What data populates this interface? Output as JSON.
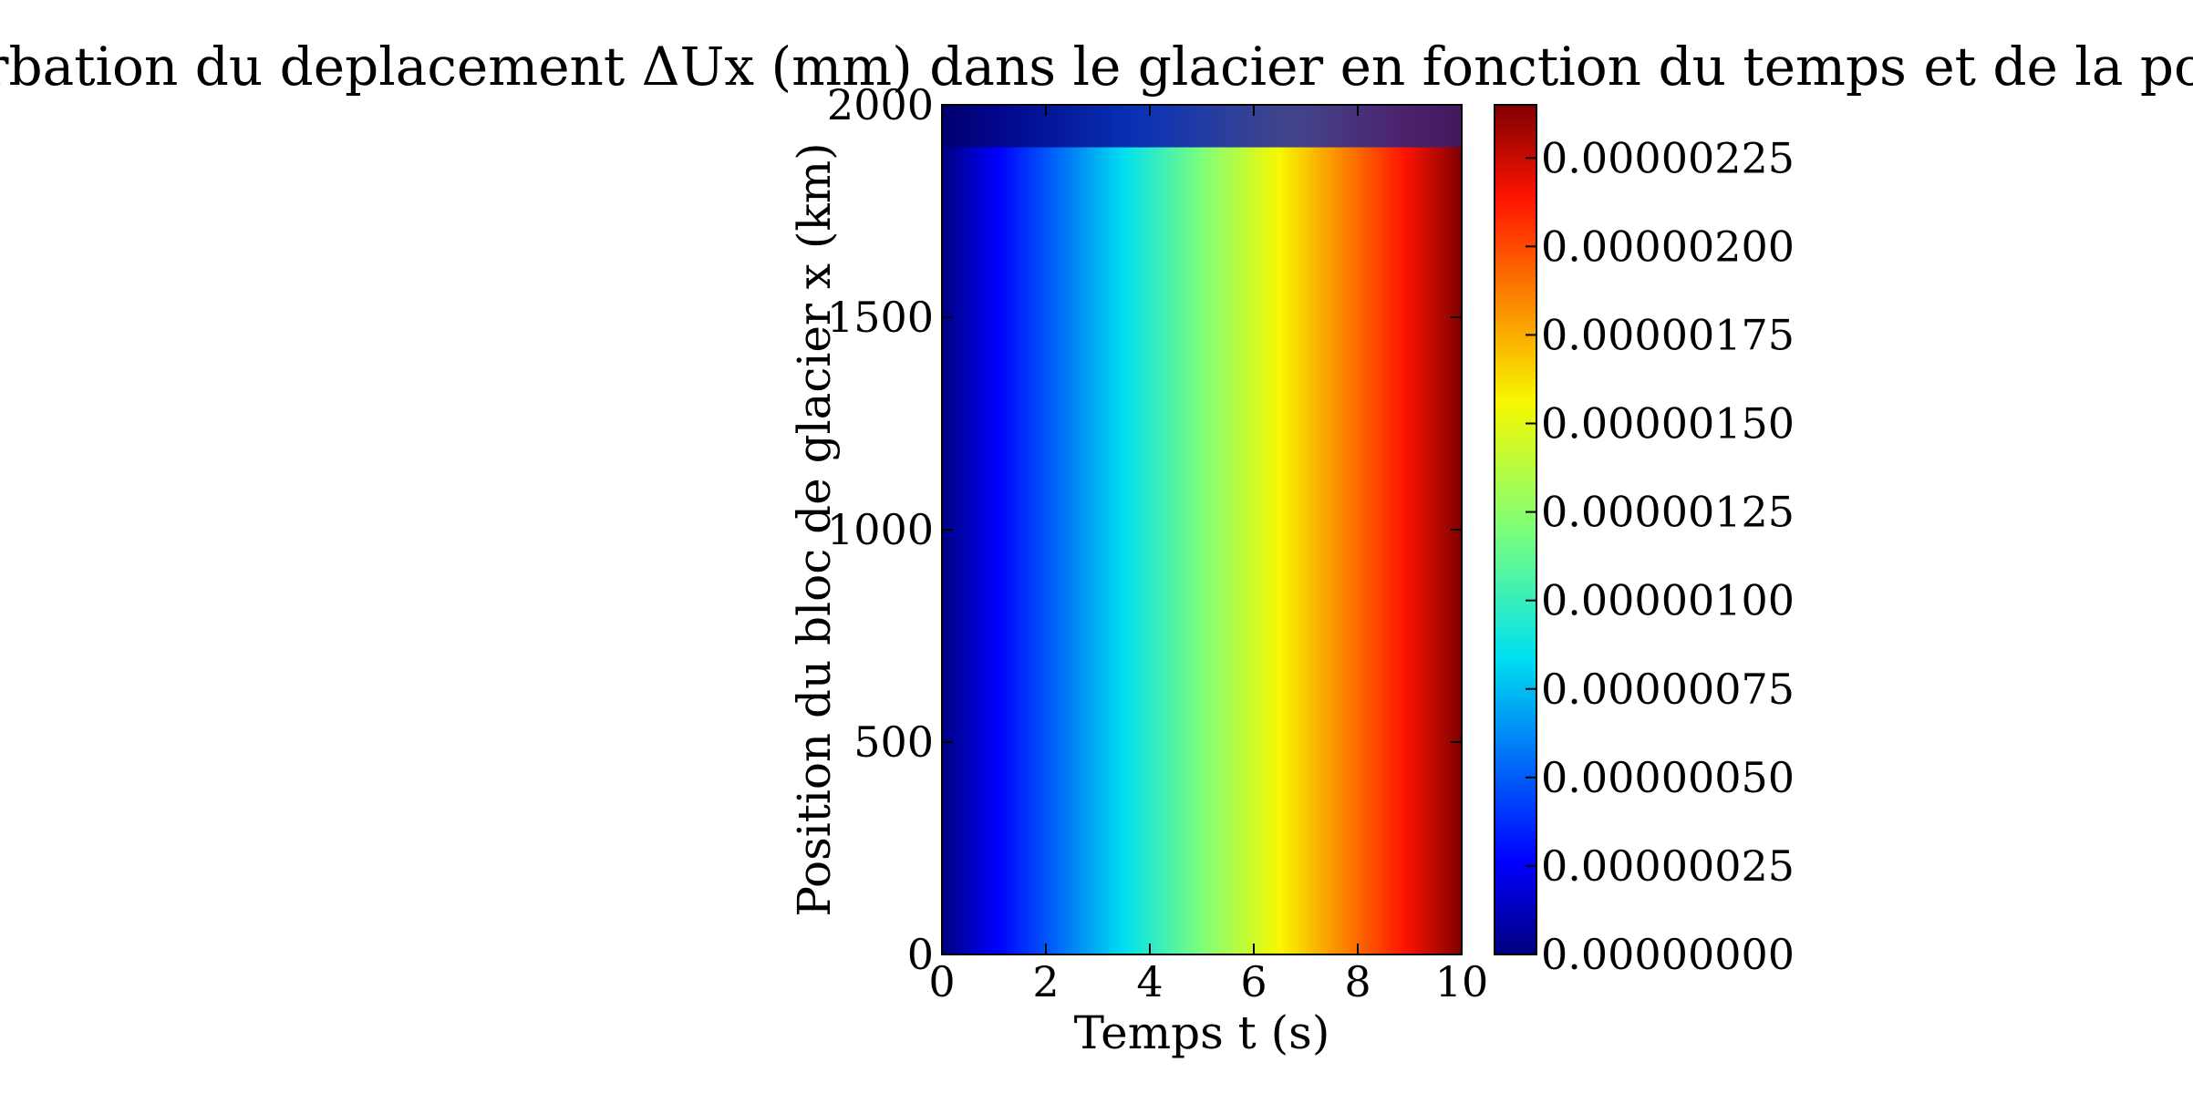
{
  "chart_data": {
    "type": "heatmap",
    "title": "Perturbation du deplacement ΔUx (mm) dans le glacier en fonction du temps et de la position",
    "xlabel": "Temps t (s)",
    "ylabel": "Position du bloc de glacier x (km)",
    "xlim": [
      0,
      10
    ],
    "ylim": [
      0,
      2000
    ],
    "x_ticks": [
      "0",
      "2",
      "4",
      "6",
      "8",
      "10"
    ],
    "y_ticks": [
      "0",
      "500",
      "1000",
      "1500",
      "2000"
    ],
    "colormap": "jet",
    "colorbar": {
      "range": [
        0,
        2.4e-06
      ],
      "ticks": [
        "0.00000000",
        "0.00000025",
        "0.00000050",
        "0.00000075",
        "0.00000100",
        "0.00000125",
        "0.00000150",
        "0.00000175",
        "0.00000200",
        "0.00000225"
      ]
    },
    "grid": false,
    "x": [
      0,
      1,
      2,
      3,
      4,
      5,
      6,
      7,
      8,
      9,
      10
    ],
    "y": [
      0,
      500,
      1000,
      1500,
      1900,
      2000
    ],
    "values": [
      [
        0.0,
        0.0,
        0.0,
        0.0,
        0.0,
        0.0
      ],
      [
        2.4e-07,
        2.4e-07,
        2.4e-07,
        2.4e-07,
        2.4e-07,
        5e-08
      ],
      [
        4.8e-07,
        4.8e-07,
        4.8e-07,
        4.8e-07,
        4.8e-07,
        1e-07
      ],
      [
        7.2e-07,
        7.2e-07,
        7.2e-07,
        7.2e-07,
        7.2e-07,
        1.5e-07
      ],
      [
        9.6e-07,
        9.6e-07,
        9.6e-07,
        9.6e-07,
        9.6e-07,
        2e-07
      ],
      [
        1.2e-06,
        1.2e-06,
        1.2e-06,
        1.2e-06,
        1.2e-06,
        2.5e-07
      ],
      [
        1.44e-06,
        1.44e-06,
        1.44e-06,
        1.44e-06,
        1.44e-06,
        3e-07
      ],
      [
        1.68e-06,
        1.68e-06,
        1.68e-06,
        1.68e-06,
        1.68e-06,
        3.5e-07
      ],
      [
        1.92e-06,
        1.92e-06,
        1.92e-06,
        1.92e-06,
        1.92e-06,
        4e-07
      ],
      [
        2.16e-06,
        2.16e-06,
        2.16e-06,
        2.16e-06,
        2.16e-06,
        4.5e-07
      ],
      [
        2.4e-06,
        2.4e-06,
        2.4e-06,
        2.4e-06,
        2.4e-06,
        5e-07
      ]
    ]
  }
}
